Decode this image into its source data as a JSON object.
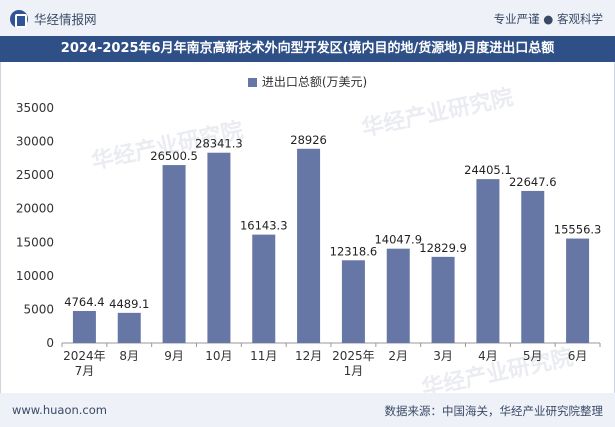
{
  "header": {
    "brand": "华经情报网",
    "tagline": "专业严谨 ● 客观科学",
    "title": "2024-2025年6月年南京高新技术外向型开发区(境内目的地/货源地)月度进出口总额"
  },
  "footer": {
    "url": "www.huaon.com",
    "source": "数据来源：中国海关，华经产业研究院整理"
  },
  "watermark": "华经产业研究院",
  "colors": {
    "bar": "#6677a5",
    "title_bg": "#2f4f87",
    "axis": "#999999"
  },
  "chart_data": {
    "type": "bar",
    "title": "2024-2025年6月年南京高新技术外向型开发区(境内目的地/货源地)月度进出口总额",
    "legend": [
      "进出口总额(万美元)"
    ],
    "series": [
      {
        "name": "进出口总额(万美元)",
        "values": [
          4764.4,
          4489.1,
          26500.5,
          28341.3,
          16143.3,
          28926,
          12318.6,
          14047.9,
          12829.9,
          24405.1,
          22647.6,
          15556.3
        ]
      }
    ],
    "categories": [
      [
        "2024年",
        "7月"
      ],
      [
        "8月"
      ],
      [
        "9月"
      ],
      [
        "10月"
      ],
      [
        "11月"
      ],
      [
        "12月"
      ],
      [
        "2025年",
        "1月"
      ],
      [
        "2月"
      ],
      [
        "3月"
      ],
      [
        "4月"
      ],
      [
        "5月"
      ],
      [
        "6月"
      ]
    ],
    "value_labels": [
      "4764.4",
      "4489.1",
      "26500.5",
      "28341.3",
      "16143.3",
      "28926",
      "12318.6",
      "14047.9",
      "12829.9",
      "24405.1",
      "22647.6",
      "15556.3"
    ],
    "yticks": [
      0,
      5000,
      10000,
      15000,
      20000,
      25000,
      30000,
      35000
    ],
    "ylim": [
      0,
      35000
    ],
    "xlabel": "",
    "ylabel": ""
  }
}
